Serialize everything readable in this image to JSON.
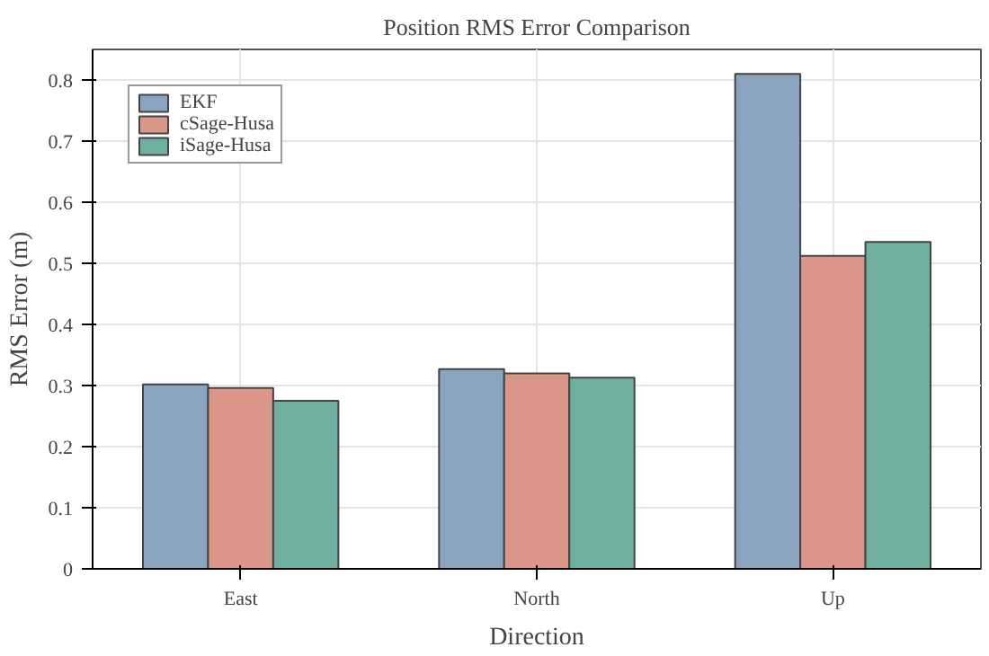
{
  "chart_data": {
    "type": "bar",
    "title": "Position RMS Error Comparison",
    "xlabel": "Direction",
    "ylabel": "RMS Error (m)",
    "categories": [
      "East",
      "North",
      "Up"
    ],
    "series": [
      {
        "name": "EKF",
        "color": "#8aa4bf",
        "values": [
          0.302,
          0.327,
          0.81
        ]
      },
      {
        "name": "cSage-Husa",
        "color": "#d99689",
        "values": [
          0.296,
          0.32,
          0.512
        ]
      },
      {
        "name": "iSage-Husa",
        "color": "#6fb0a0",
        "values": [
          0.275,
          0.313,
          0.535
        ]
      }
    ],
    "ylim": [
      0,
      0.85
    ],
    "yticks": [
      0,
      0.1,
      0.2,
      0.3,
      0.4,
      0.5,
      0.6,
      0.7,
      0.8
    ],
    "grid": true,
    "legend": "top left"
  }
}
